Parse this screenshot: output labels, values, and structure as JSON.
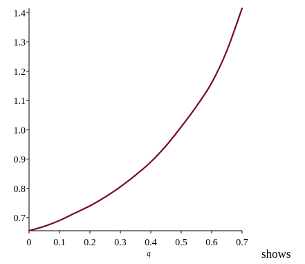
{
  "chart_data": {
    "type": "line",
    "title": "",
    "xlabel": "q",
    "ylabel": "",
    "xlim": [
      0,
      0.7
    ],
    "ylim": [
      0.655,
      1.415
    ],
    "grid": false,
    "legend": "none",
    "x_ticks": [
      "0",
      "0.1",
      "0.2",
      "0.3",
      "0.4",
      "0.5",
      "0.6",
      "0.7"
    ],
    "y_ticks": [
      "0.7",
      "0.8",
      "0.9",
      "1.0",
      "1.1",
      "1.2",
      "1.3",
      "1.4"
    ],
    "series": [
      {
        "color": "#7a0a1e",
        "x": [
          0,
          0.05,
          0.1,
          0.15,
          0.2,
          0.25,
          0.3,
          0.35,
          0.4,
          0.45,
          0.5,
          0.55,
          0.6,
          0.65,
          0.7
        ],
        "y": [
          0.655,
          0.67,
          0.69,
          0.715,
          0.74,
          0.77,
          0.805,
          0.845,
          0.89,
          0.945,
          1.01,
          1.08,
          1.16,
          1.27,
          1.415
        ]
      }
    ]
  },
  "trailing_text": "shows"
}
